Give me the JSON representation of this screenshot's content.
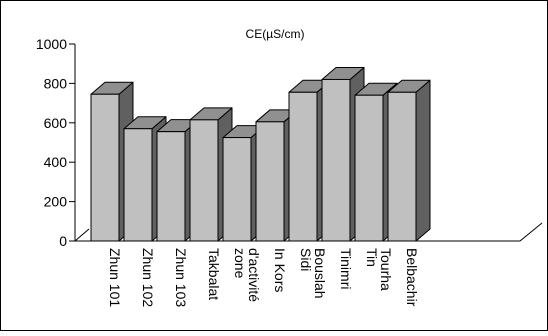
{
  "chart_data": {
    "type": "bar",
    "title": "CE(µS/cm)",
    "xlabel": "",
    "ylabel": "",
    "ylim": [
      0,
      1000
    ],
    "yticks": [
      0,
      200,
      400,
      600,
      800,
      1000
    ],
    "grid": false,
    "legend": "none",
    "bar_style": "3d",
    "categories": [
      "Zhun 101",
      "Zhun 102",
      "Zhun 103",
      "Takbalat",
      "zone d'activité",
      "In Kors",
      "Sidi Bouslah",
      "Tinimri",
      "Tin Tourha",
      "Belbachir"
    ],
    "category_lines": [
      [
        "Zhun 101"
      ],
      [
        "Zhun 102"
      ],
      [
        "Zhun 103"
      ],
      [
        "Takbalat"
      ],
      [
        "zone",
        "d'activité"
      ],
      [
        "In Kors"
      ],
      [
        "Sidi",
        "Bouslah"
      ],
      [
        "Tinimri"
      ],
      [
        "Tin",
        "Tourha"
      ],
      [
        "Belbachir"
      ]
    ],
    "values": [
      745,
      570,
      555,
      615,
      525,
      605,
      755,
      820,
      740,
      755
    ],
    "colors": {
      "bar_front": "#c0c0c0",
      "bar_top": "#909090",
      "bar_side": "#606060",
      "outline": "#000000"
    }
  }
}
